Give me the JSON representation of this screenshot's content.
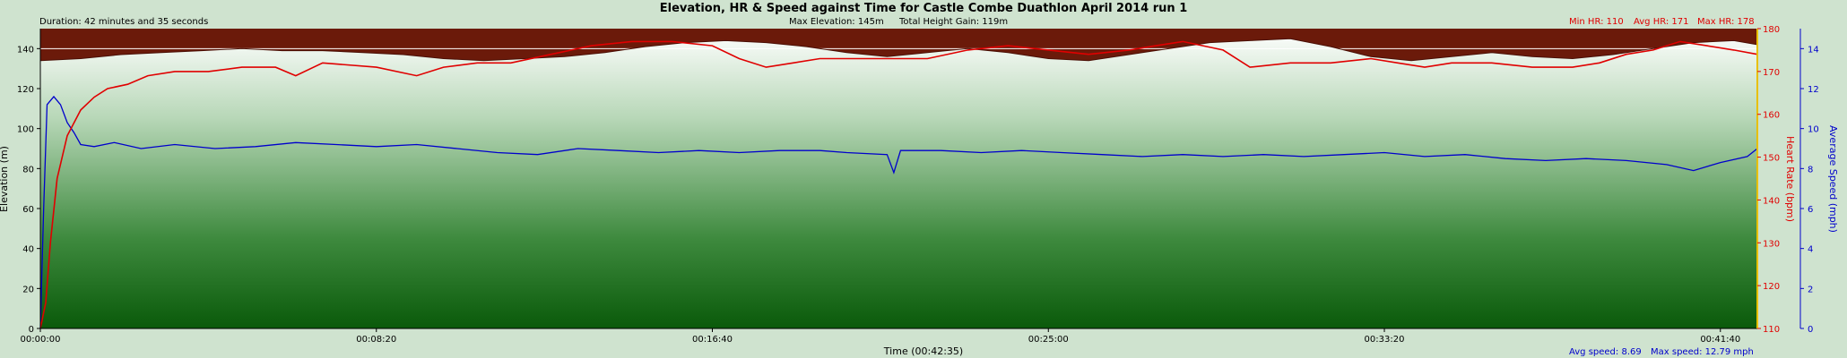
{
  "chart_data": {
    "type": "line",
    "title": "Elevation, HR & Speed against Time for Castle Combe Duathlon April 2014 run 1",
    "duration": "Duration: 42 minutes and 35 seconds",
    "max_elevation": "Max Elevation: 145m",
    "total_height_gain": "Total Height Gain: 119m",
    "min_hr": "Min HR: 110",
    "avg_hr": "Avg HR: 171",
    "max_hr": "Max HR: 178",
    "avg_speed": "Avg speed: 8.69",
    "max_speed": "Max speed: 12.79 mph",
    "xlabel": "Time (00:42:35)",
    "ylabel_left": "Elevation (m)",
    "ylabel_hr": "Heart Rate (bpm)",
    "ylabel_speed": "Average Speed (mph)",
    "x_ticks": [
      "00:00:00",
      "00:08:20",
      "00:16:40",
      "00:25:00",
      "00:33:20",
      "00:41:40"
    ],
    "x_tick_seconds": [
      0,
      500,
      1000,
      1500,
      2000,
      2500
    ],
    "x_range_seconds": [
      0,
      2555
    ],
    "elevation_ticks": [
      "0",
      "20",
      "40",
      "60",
      "80",
      "100",
      "120",
      "140"
    ],
    "elevation_range": [
      0,
      150
    ],
    "hr_ticks": [
      "110",
      "120",
      "130",
      "140",
      "150",
      "160",
      "170",
      "180"
    ],
    "hr_range": [
      110,
      180
    ],
    "speed_ticks": [
      "0",
      "2",
      "4",
      "6",
      "8",
      "10",
      "12",
      "14"
    ],
    "speed_range": [
      0,
      15
    ],
    "series": [
      {
        "name": "Elevation",
        "color": "#6b1a0a",
        "points": [
          [
            0,
            134
          ],
          [
            60,
            135
          ],
          [
            120,
            137
          ],
          [
            180,
            138
          ],
          [
            240,
            139
          ],
          [
            300,
            140
          ],
          [
            360,
            139
          ],
          [
            420,
            139
          ],
          [
            480,
            138
          ],
          [
            540,
            137
          ],
          [
            600,
            135
          ],
          [
            660,
            134
          ],
          [
            720,
            135
          ],
          [
            780,
            136
          ],
          [
            840,
            138
          ],
          [
            900,
            141
          ],
          [
            960,
            143
          ],
          [
            1020,
            144
          ],
          [
            1080,
            143
          ],
          [
            1140,
            141
          ],
          [
            1200,
            138
          ],
          [
            1260,
            136
          ],
          [
            1320,
            138
          ],
          [
            1380,
            140
          ],
          [
            1440,
            138
          ],
          [
            1500,
            135
          ],
          [
            1560,
            134
          ],
          [
            1620,
            137
          ],
          [
            1680,
            140
          ],
          [
            1740,
            143
          ],
          [
            1800,
            144
          ],
          [
            1860,
            145
          ],
          [
            1920,
            141
          ],
          [
            1980,
            136
          ],
          [
            2040,
            134
          ],
          [
            2100,
            136
          ],
          [
            2160,
            138
          ],
          [
            2220,
            136
          ],
          [
            2280,
            135
          ],
          [
            2340,
            137
          ],
          [
            2400,
            140
          ],
          [
            2460,
            143
          ],
          [
            2520,
            144
          ],
          [
            2555,
            142
          ]
        ]
      },
      {
        "name": "Heart Rate",
        "color": "#e00000",
        "points": [
          [
            0,
            110
          ],
          [
            8,
            116
          ],
          [
            15,
            130
          ],
          [
            25,
            145
          ],
          [
            40,
            155
          ],
          [
            60,
            161
          ],
          [
            80,
            164
          ],
          [
            100,
            166
          ],
          [
            130,
            167
          ],
          [
            160,
            169
          ],
          [
            200,
            170
          ],
          [
            250,
            170
          ],
          [
            300,
            171
          ],
          [
            350,
            171
          ],
          [
            380,
            169
          ],
          [
            420,
            172
          ],
          [
            500,
            171
          ],
          [
            560,
            169
          ],
          [
            600,
            171
          ],
          [
            650,
            172
          ],
          [
            700,
            172
          ],
          [
            760,
            174
          ],
          [
            820,
            176
          ],
          [
            880,
            177
          ],
          [
            940,
            177
          ],
          [
            1000,
            176
          ],
          [
            1040,
            173
          ],
          [
            1080,
            171
          ],
          [
            1120,
            172
          ],
          [
            1160,
            173
          ],
          [
            1200,
            173
          ],
          [
            1260,
            173
          ],
          [
            1320,
            173
          ],
          [
            1380,
            175
          ],
          [
            1440,
            176
          ],
          [
            1500,
            175
          ],
          [
            1560,
            174
          ],
          [
            1620,
            175
          ],
          [
            1660,
            176
          ],
          [
            1700,
            177
          ],
          [
            1760,
            175
          ],
          [
            1800,
            171
          ],
          [
            1860,
            172
          ],
          [
            1920,
            172
          ],
          [
            1980,
            173
          ],
          [
            2020,
            172
          ],
          [
            2060,
            171
          ],
          [
            2100,
            172
          ],
          [
            2160,
            172
          ],
          [
            2220,
            171
          ],
          [
            2280,
            171
          ],
          [
            2320,
            172
          ],
          [
            2360,
            174
          ],
          [
            2400,
            175
          ],
          [
            2440,
            177
          ],
          [
            2480,
            176
          ],
          [
            2520,
            175
          ],
          [
            2555,
            174
          ]
        ]
      },
      {
        "name": "Average Speed",
        "color": "#0000cc",
        "points": [
          [
            0,
            0
          ],
          [
            5,
            6
          ],
          [
            10,
            11.2
          ],
          [
            20,
            11.6
          ],
          [
            30,
            11.2
          ],
          [
            40,
            10.3
          ],
          [
            50,
            9.8
          ],
          [
            60,
            9.2
          ],
          [
            80,
            9.1
          ],
          [
            110,
            9.3
          ],
          [
            150,
            9.0
          ],
          [
            200,
            9.2
          ],
          [
            260,
            9.0
          ],
          [
            320,
            9.1
          ],
          [
            380,
            9.3
          ],
          [
            440,
            9.2
          ],
          [
            500,
            9.1
          ],
          [
            560,
            9.2
          ],
          [
            620,
            9.0
          ],
          [
            680,
            8.8
          ],
          [
            740,
            8.7
          ],
          [
            800,
            9.0
          ],
          [
            860,
            8.9
          ],
          [
            920,
            8.8
          ],
          [
            980,
            8.9
          ],
          [
            1040,
            8.8
          ],
          [
            1100,
            8.9
          ],
          [
            1160,
            8.9
          ],
          [
            1200,
            8.8
          ],
          [
            1260,
            8.7
          ],
          [
            1270,
            7.8
          ],
          [
            1280,
            8.9
          ],
          [
            1340,
            8.9
          ],
          [
            1400,
            8.8
          ],
          [
            1460,
            8.9
          ],
          [
            1520,
            8.8
          ],
          [
            1580,
            8.7
          ],
          [
            1640,
            8.6
          ],
          [
            1700,
            8.7
          ],
          [
            1760,
            8.6
          ],
          [
            1820,
            8.7
          ],
          [
            1880,
            8.6
          ],
          [
            1940,
            8.7
          ],
          [
            2000,
            8.8
          ],
          [
            2060,
            8.6
          ],
          [
            2120,
            8.7
          ],
          [
            2180,
            8.5
          ],
          [
            2240,
            8.4
          ],
          [
            2300,
            8.5
          ],
          [
            2360,
            8.4
          ],
          [
            2420,
            8.2
          ],
          [
            2460,
            7.9
          ],
          [
            2500,
            8.3
          ],
          [
            2540,
            8.6
          ],
          [
            2555,
            9.0
          ]
        ]
      }
    ]
  }
}
